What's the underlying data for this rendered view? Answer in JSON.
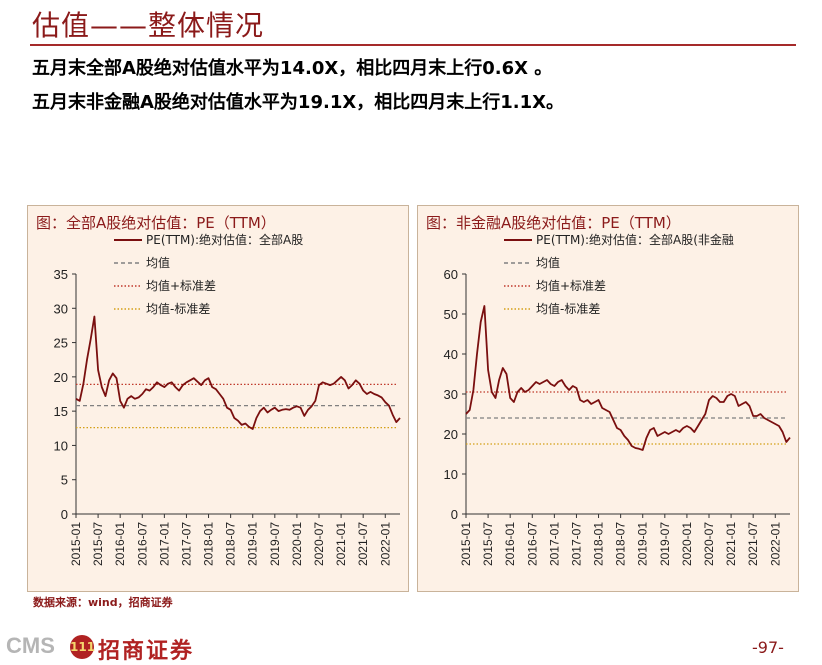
{
  "page": {
    "title": "估值——整体情况",
    "line1": "五月末全部A股绝对估值水平为14.0X，相比四月末上行0.6X 。",
    "line2": "五月末非金融A股绝对估值水平为19.1X，相比四月末上行1.1X。",
    "source": "数据来源：wind，招商证券",
    "brand_latin": "CMS",
    "brand_badge": "111",
    "brand_cn": "招商证券",
    "page_number": "-97-",
    "colors": {
      "accent": "#8b1a1a",
      "panel_bg": "#fdf1e6",
      "pe_line": "#7a0f0f",
      "mean": "#808080",
      "plus_sd": "#c0392b",
      "minus_sd": "#d4a017"
    }
  },
  "chart_data": [
    {
      "type": "line",
      "title": "图：全部A股绝对估值：PE（TTM）",
      "legend": [
        "PE(TTM):绝对估值：全部A股",
        "均值",
        "均值+标准差",
        "均值-标准差"
      ],
      "x_ticks": [
        "2015-01",
        "2015-07",
        "2016-01",
        "2016-07",
        "2017-01",
        "2017-07",
        "2018-01",
        "2018-07",
        "2019-01",
        "2019-07",
        "2020-01",
        "2020-07",
        "2021-01",
        "2021-07",
        "2022-01"
      ],
      "y_ticks": [
        "0",
        "5",
        "10",
        "15",
        "20",
        "25",
        "30",
        "35"
      ],
      "ylim": [
        0,
        35
      ],
      "x_range": [
        "2015-01",
        "2022-05"
      ],
      "reference_lines": {
        "mean": 15.8,
        "mean_plus_sd": 18.9,
        "mean_minus_sd": 12.6
      },
      "series": [
        {
          "name": "PE(TTM):绝对估值：全部A股",
          "x": [
            "2015-01",
            "2015-02",
            "2015-03",
            "2015-04",
            "2015-05",
            "2015-06",
            "2015-07",
            "2015-08",
            "2015-09",
            "2015-10",
            "2015-11",
            "2015-12",
            "2016-01",
            "2016-02",
            "2016-03",
            "2016-04",
            "2016-05",
            "2016-06",
            "2016-07",
            "2016-08",
            "2016-09",
            "2016-10",
            "2016-11",
            "2016-12",
            "2017-01",
            "2017-02",
            "2017-03",
            "2017-04",
            "2017-05",
            "2017-06",
            "2017-07",
            "2017-08",
            "2017-09",
            "2017-10",
            "2017-11",
            "2017-12",
            "2018-01",
            "2018-02",
            "2018-03",
            "2018-04",
            "2018-05",
            "2018-06",
            "2018-07",
            "2018-08",
            "2018-09",
            "2018-10",
            "2018-11",
            "2018-12",
            "2019-01",
            "2019-02",
            "2019-03",
            "2019-04",
            "2019-05",
            "2019-06",
            "2019-07",
            "2019-08",
            "2019-09",
            "2019-10",
            "2019-11",
            "2019-12",
            "2020-01",
            "2020-02",
            "2020-03",
            "2020-04",
            "2020-05",
            "2020-06",
            "2020-07",
            "2020-08",
            "2020-09",
            "2020-10",
            "2020-11",
            "2020-12",
            "2021-01",
            "2021-02",
            "2021-03",
            "2021-04",
            "2021-05",
            "2021-06",
            "2021-07",
            "2021-08",
            "2021-09",
            "2021-10",
            "2021-11",
            "2021-12",
            "2022-01",
            "2022-02",
            "2022-03",
            "2022-04",
            "2022-05"
          ],
          "values": [
            16.8,
            16.5,
            19.0,
            22.5,
            25.5,
            28.8,
            21.0,
            18.5,
            17.2,
            19.5,
            20.5,
            19.8,
            16.5,
            15.5,
            16.8,
            17.2,
            16.8,
            17.0,
            17.5,
            18.2,
            18.0,
            18.5,
            19.2,
            18.8,
            18.5,
            19.0,
            19.2,
            18.5,
            18.0,
            18.8,
            19.2,
            19.5,
            19.8,
            19.3,
            18.8,
            19.5,
            19.8,
            18.5,
            18.2,
            17.5,
            16.8,
            15.5,
            15.2,
            14.0,
            13.6,
            13.0,
            13.2,
            12.7,
            12.4,
            14.0,
            15.0,
            15.5,
            14.8,
            15.2,
            15.5,
            15.0,
            15.2,
            15.3,
            15.2,
            15.5,
            15.7,
            15.5,
            14.3,
            15.2,
            15.7,
            16.5,
            18.8,
            19.2,
            19.0,
            18.8,
            19.0,
            19.5,
            20.0,
            19.5,
            18.3,
            18.8,
            19.5,
            19.0,
            18.0,
            17.5,
            17.8,
            17.5,
            17.3,
            17.0,
            16.3,
            15.8,
            14.5,
            13.4,
            14.0
          ]
        }
      ]
    },
    {
      "type": "line",
      "title": "图：非金融A股绝对估值：PE（TTM）",
      "legend": [
        "PE(TTM):绝对估值：全部A股(非金融",
        "均值",
        "均值+标准差",
        "均值-标准差"
      ],
      "x_ticks": [
        "2015-01",
        "2015-07",
        "2016-01",
        "2016-07",
        "2017-01",
        "2017-07",
        "2018-01",
        "2018-07",
        "2019-01",
        "2019-07",
        "2020-01",
        "2020-07",
        "2021-01",
        "2021-07",
        "2022-01"
      ],
      "y_ticks": [
        "0",
        "10",
        "20",
        "30",
        "40",
        "50",
        "60"
      ],
      "ylim": [
        0,
        60
      ],
      "x_range": [
        "2015-01",
        "2022-05"
      ],
      "reference_lines": {
        "mean": 24.0,
        "mean_plus_sd": 30.5,
        "mean_minus_sd": 17.5
      },
      "series": [
        {
          "name": "PE(TTM):绝对估值：全部A股(非金融",
          "x": [
            "2015-01",
            "2015-02",
            "2015-03",
            "2015-04",
            "2015-05",
            "2015-06",
            "2015-07",
            "2015-08",
            "2015-09",
            "2015-10",
            "2015-11",
            "2015-12",
            "2016-01",
            "2016-02",
            "2016-03",
            "2016-04",
            "2016-05",
            "2016-06",
            "2016-07",
            "2016-08",
            "2016-09",
            "2016-10",
            "2016-11",
            "2016-12",
            "2017-01",
            "2017-02",
            "2017-03",
            "2017-04",
            "2017-05",
            "2017-06",
            "2017-07",
            "2017-08",
            "2017-09",
            "2017-10",
            "2017-11",
            "2017-12",
            "2018-01",
            "2018-02",
            "2018-03",
            "2018-04",
            "2018-05",
            "2018-06",
            "2018-07",
            "2018-08",
            "2018-09",
            "2018-10",
            "2018-11",
            "2018-12",
            "2019-01",
            "2019-02",
            "2019-03",
            "2019-04",
            "2019-05",
            "2019-06",
            "2019-07",
            "2019-08",
            "2019-09",
            "2019-10",
            "2019-11",
            "2019-12",
            "2020-01",
            "2020-02",
            "2020-03",
            "2020-04",
            "2020-05",
            "2020-06",
            "2020-07",
            "2020-08",
            "2020-09",
            "2020-10",
            "2020-11",
            "2020-12",
            "2021-01",
            "2021-02",
            "2021-03",
            "2021-04",
            "2021-05",
            "2021-06",
            "2021-07",
            "2021-08",
            "2021-09",
            "2021-10",
            "2021-11",
            "2021-12",
            "2022-01",
            "2022-02",
            "2022-03",
            "2022-04",
            "2022-05"
          ],
          "values": [
            25.0,
            26.0,
            31.0,
            40.0,
            48.0,
            52.0,
            36.0,
            30.5,
            29.0,
            33.5,
            36.5,
            35.0,
            29.0,
            28.0,
            30.5,
            31.5,
            30.5,
            31.0,
            32.0,
            33.0,
            32.5,
            33.0,
            33.5,
            32.5,
            32.0,
            33.0,
            33.5,
            32.0,
            31.0,
            32.0,
            31.5,
            28.5,
            28.0,
            28.5,
            27.5,
            28.0,
            28.5,
            26.5,
            26.0,
            25.5,
            23.5,
            21.5,
            21.0,
            19.5,
            18.5,
            17.0,
            16.5,
            16.3,
            16.0,
            19.0,
            21.0,
            21.5,
            19.5,
            20.0,
            20.5,
            20.0,
            20.5,
            21.0,
            20.5,
            21.5,
            22.0,
            21.5,
            20.5,
            22.0,
            23.5,
            25.0,
            28.5,
            29.5,
            29.0,
            28.0,
            28.0,
            29.5,
            30.0,
            29.5,
            27.0,
            27.5,
            28.0,
            27.0,
            24.5,
            24.5,
            25.0,
            24.0,
            23.5,
            23.0,
            22.5,
            22.0,
            20.5,
            18.0,
            19.1
          ]
        }
      ]
    }
  ]
}
